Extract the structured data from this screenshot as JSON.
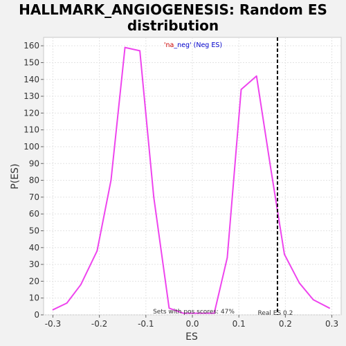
{
  "chart_data": {
    "type": "line",
    "title_lines": [
      "HALLMARK_ANGIOGENESIS: Random ES",
      "distribution"
    ],
    "xlabel": "ES",
    "ylabel": "P(ES)",
    "xlim": [
      -0.32,
      0.32
    ],
    "ylim": [
      0,
      165
    ],
    "xticks": [
      -0.3,
      -0.2,
      -0.1,
      0.0,
      0.1,
      0.2,
      0.3
    ],
    "xtick_labels": [
      "-0.3",
      "-0.2",
      "-0.1",
      "0.0",
      "0.1",
      "0.2",
      "0.3"
    ],
    "yticks": [
      0,
      10,
      20,
      30,
      40,
      50,
      60,
      70,
      80,
      90,
      100,
      110,
      120,
      130,
      140,
      150,
      160
    ],
    "ytick_labels": [
      "0",
      "10",
      "20",
      "30",
      "40",
      "50",
      "60",
      "70",
      "80",
      "90",
      "100",
      "110",
      "120",
      "130",
      "140",
      "150",
      "160"
    ],
    "grid": true,
    "series": [
      {
        "name": "distribution",
        "color": "#ee44ee",
        "x": [
          -0.3,
          -0.27,
          -0.24,
          -0.205,
          -0.175,
          -0.145,
          -0.113,
          -0.083,
          -0.05,
          -0.02,
          0.015,
          0.047,
          0.075,
          0.105,
          0.138,
          0.168,
          0.198,
          0.23,
          0.26,
          0.295
        ],
        "y": [
          3,
          7,
          18,
          38,
          80,
          159,
          157,
          70,
          4,
          1,
          1,
          1,
          34,
          134,
          142,
          88,
          36,
          19,
          9,
          4
        ]
      }
    ],
    "real_es": {
      "value": 0.183,
      "label": "Real ES 0.2",
      "color": "#000000"
    },
    "legend": {
      "part1": "'na",
      "part2": "_neg'",
      "part3": " (Neg ES)",
      "color1": "#cc0000",
      "color2": "#0000cc"
    },
    "annotation_pos": "Sets with pos scores: 47%"
  }
}
